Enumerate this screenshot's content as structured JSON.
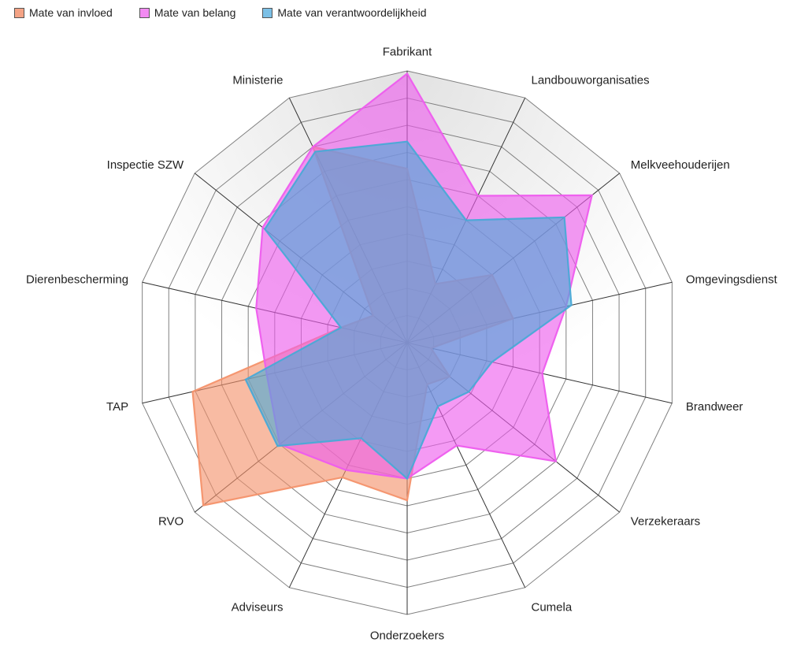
{
  "chart_data": {
    "type": "radar",
    "categories": [
      "Fabrikant",
      "Landbouworganisaties",
      "Melkveehouderijen",
      "Omgevingsdienst",
      "Brandweer",
      "Verzekeraars",
      "Cumela",
      "Onderzoekers",
      "Adviseurs",
      "RVO",
      "TAP",
      "Dierenbescherming",
      "Inspectie SZW",
      "Ministerie"
    ],
    "rmax": 10,
    "rings": 10,
    "series": [
      {
        "name": "Mate van invloed",
        "color": "#F4926B",
        "values": [
          6.4,
          2.4,
          4.0,
          4.0,
          0.9,
          2.0,
          1.7,
          5.8,
          5.5,
          9.6,
          8.1,
          2.5,
          1.6,
          8.0
        ]
      },
      {
        "name": "Mate van belang",
        "color": "#EE5CEE",
        "values": [
          9.9,
          6.0,
          8.7,
          6.0,
          5.1,
          7.0,
          4.2,
          5.0,
          5.2,
          6.0,
          5.3,
          5.7,
          6.8,
          8.0
        ]
      },
      {
        "name": "Mate van verantwoordelijkheid",
        "color": "#4AA9D6",
        "values": [
          7.4,
          5.0,
          7.4,
          6.2,
          3.2,
          2.9,
          2.6,
          5.0,
          3.9,
          6.1,
          6.1,
          2.5,
          6.7,
          7.8
        ]
      }
    ]
  }
}
